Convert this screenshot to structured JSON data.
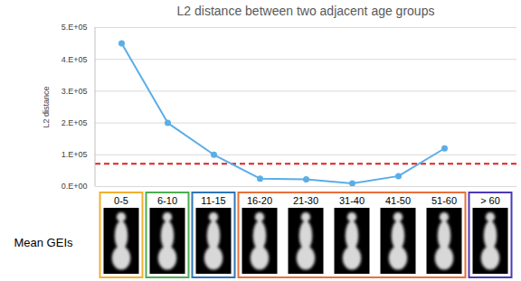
{
  "chart_data": {
    "type": "line",
    "title": "L2 distance between two adjacent age groups",
    "y_label": "L2 distance",
    "row_label": "Mean GEIs",
    "categories": [
      "0-5",
      "6-10",
      "11-15",
      "16-20",
      "21-30",
      "31-40",
      "41-50",
      "51-60",
      "> 60"
    ],
    "values": [
      450000,
      200000,
      100000,
      25000,
      23000,
      10000,
      33000,
      120000,
      null
    ],
    "color": "#5aaee8",
    "marker": "circle",
    "colors": [
      "#f0b030",
      "#4caf50",
      "#2e75b6",
      "#e8703a",
      "#e8703a",
      "#e8703a",
      "#e8703a",
      "#e8703a",
      "#4b3bb5"
    ],
    "threshold": {
      "value": 72000,
      "color": "#e02020",
      "line_style": "dashed"
    },
    "ylim": [
      0,
      500000
    ],
    "yticks": [
      {
        "value": 0,
        "label": "0.E+00"
      },
      {
        "value": 100000,
        "label": "1.E+05"
      },
      {
        "value": 200000,
        "label": "2.E+05"
      },
      {
        "value": 300000,
        "label": "3.E+05"
      },
      {
        "value": 400000,
        "label": "4.E+05"
      },
      {
        "value": 500000,
        "label": "5.E+05"
      }
    ],
    "grid": true,
    "tick_labels": "y"
  }
}
